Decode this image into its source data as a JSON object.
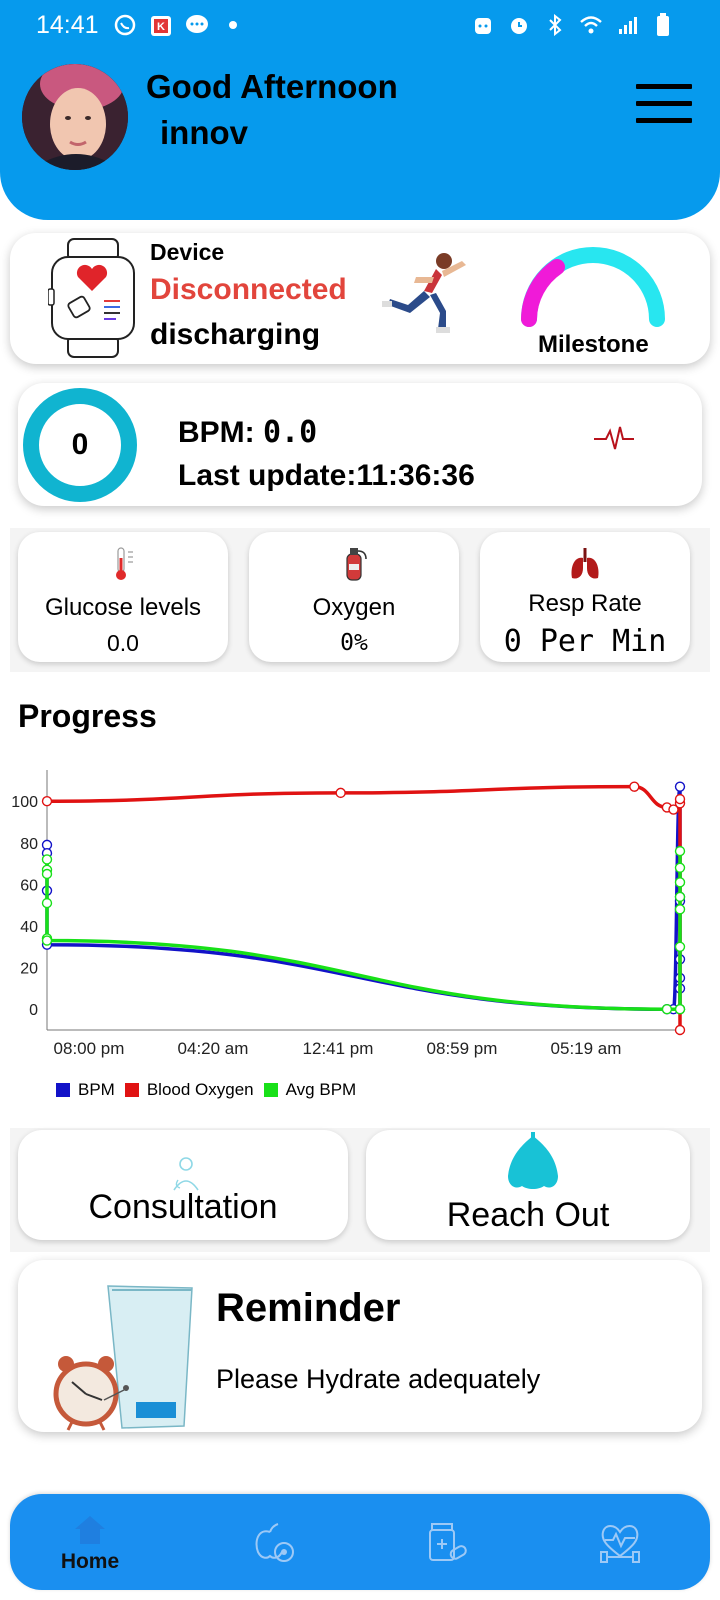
{
  "status_bar": {
    "time": "14:41",
    "left_icons": [
      "whatsapp-icon",
      "k-app-icon",
      "chat-icon",
      "dot-icon"
    ],
    "right_icons": [
      "face-icon",
      "alarm-icon",
      "bluetooth-icon",
      "wifi-icon",
      "signal-icon",
      "battery-icon"
    ]
  },
  "header": {
    "greeting": "Good Afternoon",
    "username": "innov",
    "background_color": "#069aed"
  },
  "device": {
    "label": "Device",
    "status": "Disconnected",
    "battery": "discharging",
    "status_color": "#e2453c",
    "milestone_label": "Milestone"
  },
  "heart": {
    "ring_value": "0",
    "bpm_label": "BPM: ",
    "bpm_value": "0.0",
    "last_update": "Last update:11:36:36"
  },
  "metrics": [
    {
      "label": "Glucose levels",
      "value": "0.0",
      "icon": "thermometer-icon"
    },
    {
      "label": "Oxygen",
      "value": "0%",
      "icon": "oxygen-tank-icon"
    },
    {
      "label": "Resp Rate",
      "value": "0 Per Min",
      "icon": "lungs-icon"
    }
  ],
  "progress": {
    "title": "Progress"
  },
  "chart_data": {
    "type": "line",
    "title": "",
    "x_tick_labels": [
      "08:00 pm",
      "04:20 am",
      "12:41 pm",
      "08:59 pm",
      "05:19 am"
    ],
    "y_tick_labels": [
      "100",
      "80",
      "60",
      "40",
      "20",
      "0"
    ],
    "ylim": [
      -10,
      115
    ],
    "series": [
      {
        "name": "BPM",
        "color": "#1212c8",
        "x": [
          0,
          0,
          0,
          0,
          0.95,
          0.96,
          0.97,
          0.97,
          0.97,
          0.97,
          0.97,
          0.97,
          0.97
        ],
        "y": [
          79,
          75,
          57,
          31,
          0,
          0,
          107,
          54,
          52,
          24,
          15,
          10,
          0
        ]
      },
      {
        "name": "Blood Oxygen",
        "color": "#e01212",
        "x": [
          0,
          0.45,
          0.9,
          0.95,
          0.96,
          0.97,
          0.97,
          0.97
        ],
        "y": [
          100,
          104,
          107,
          97,
          96,
          99,
          101,
          -10
        ]
      },
      {
        "name": "Avg BPM",
        "color": "#18e018",
        "x": [
          0,
          0,
          0,
          0,
          0,
          0,
          0.95,
          0.97,
          0.97,
          0.97,
          0.97,
          0.97,
          0.97,
          0.97,
          0.97
        ],
        "y": [
          72,
          67,
          65,
          51,
          34,
          33,
          0,
          0,
          76,
          68,
          61,
          54,
          48,
          30,
          0
        ]
      }
    ],
    "legend_position": "bottom-left",
    "grid": false
  },
  "actions": {
    "consultation": "Consultation",
    "reach_out": "Reach Out"
  },
  "reminder": {
    "title": "Reminder",
    "text": "Please Hydrate adequately"
  },
  "bottom_nav": {
    "home_label": "Home",
    "color": "#1a8ff0",
    "items": [
      "home-icon",
      "nutrition-icon",
      "medication-icon",
      "fitness-icon"
    ]
  }
}
